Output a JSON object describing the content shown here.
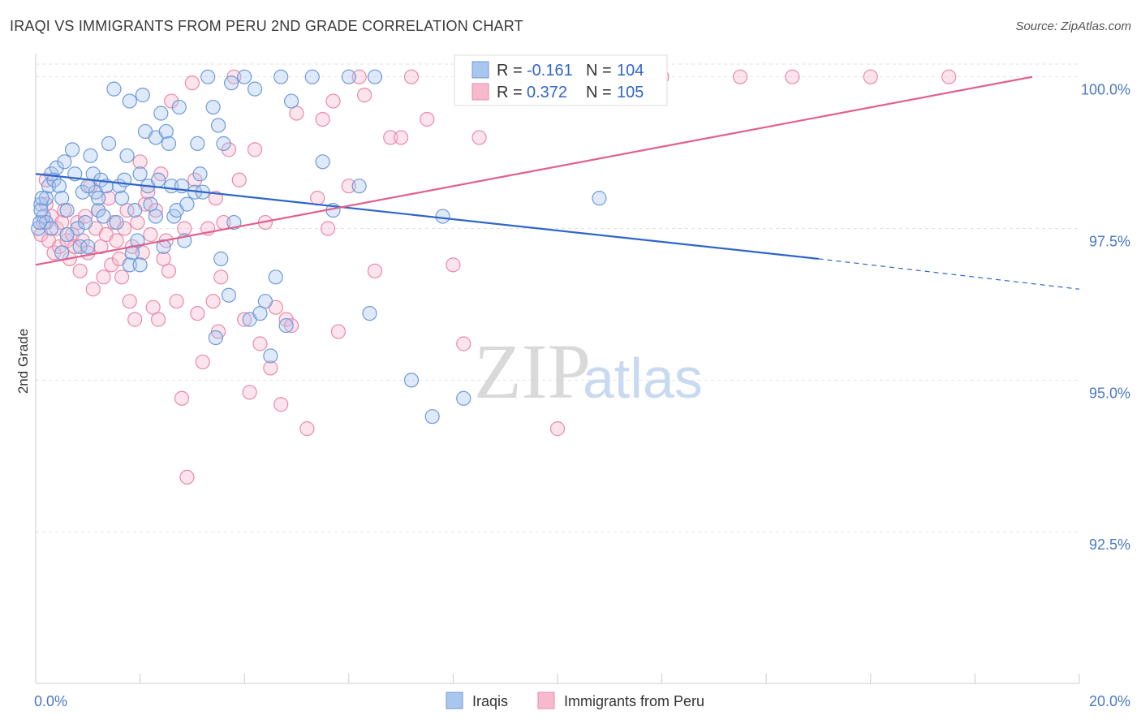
{
  "header": {
    "title": "IRAQI VS IMMIGRANTS FROM PERU 2ND GRADE CORRELATION CHART",
    "source": "Source: ZipAtlas.com"
  },
  "watermark": {
    "zip": "ZIP",
    "atlas": "atlas"
  },
  "legend": {
    "r_label": "R =",
    "n_label": "N =",
    "items": [
      {
        "r": "-0.161",
        "n": "104",
        "color": "#a9c6ef",
        "stroke": "#6f9ad8"
      },
      {
        "r": "0.372",
        "n": "105",
        "color": "#f7b9cc",
        "stroke": "#e98aa8"
      }
    ]
  },
  "bottom_legend": {
    "items": [
      {
        "label": "Iraqis",
        "color": "#a9c6ef",
        "stroke": "#6f9ad8"
      },
      {
        "label": "Immigrants from Peru",
        "color": "#f7b9cc",
        "stroke": "#e98aa8"
      }
    ]
  },
  "chart_data": {
    "type": "scatter",
    "title": "IRAQI VS IMMIGRANTS FROM PERU 2ND GRADE CORRELATION CHART",
    "xlabel": "",
    "ylabel": "2nd Grade",
    "xlim": [
      0,
      20
    ],
    "ylim": [
      90.0,
      100.25
    ],
    "x_ticks_labels": [
      "0.0%",
      "20.0%"
    ],
    "y_ticks": [
      92.5,
      95.0,
      97.5,
      100.0
    ],
    "y_ticks_labels": [
      "92.5%",
      "95.0%",
      "97.5%",
      "100.0%"
    ],
    "grid": true,
    "legend_position": "top-center",
    "series": [
      {
        "name": "Iraqis",
        "color": "#6f9ad8",
        "r": -0.161,
        "n": 104,
        "trend": {
          "x0": 0,
          "y0": 98.4,
          "x1": 15.0,
          "y1": 97.0,
          "dash_to_x": 20.0,
          "dash_to_y": 96.5
        },
        "points": [
          [
            0.1,
            97.9
          ],
          [
            0.15,
            97.7
          ],
          [
            0.2,
            98.0
          ],
          [
            0.2,
            97.6
          ],
          [
            0.25,
            98.2
          ],
          [
            0.3,
            98.4
          ],
          [
            0.35,
            98.3
          ],
          [
            0.4,
            98.5
          ],
          [
            0.45,
            98.2
          ],
          [
            0.5,
            98.0
          ],
          [
            0.55,
            98.6
          ],
          [
            0.6,
            97.8
          ],
          [
            0.7,
            98.8
          ],
          [
            0.75,
            98.4
          ],
          [
            0.8,
            97.5
          ],
          [
            0.85,
            97.2
          ],
          [
            0.9,
            98.1
          ],
          [
            0.95,
            97.6
          ],
          [
            1.0,
            97.2
          ],
          [
            1.05,
            98.7
          ],
          [
            1.1,
            98.4
          ],
          [
            1.15,
            98.1
          ],
          [
            1.2,
            97.8
          ],
          [
            1.25,
            98.3
          ],
          [
            1.3,
            97.7
          ],
          [
            1.35,
            98.2
          ],
          [
            1.4,
            98.9
          ],
          [
            1.5,
            99.8
          ],
          [
            1.55,
            97.6
          ],
          [
            1.6,
            98.2
          ],
          [
            1.65,
            98.0
          ],
          [
            1.7,
            98.3
          ],
          [
            1.75,
            98.7
          ],
          [
            1.8,
            99.6
          ],
          [
            1.85,
            97.1
          ],
          [
            1.9,
            97.8
          ],
          [
            1.95,
            97.3
          ],
          [
            2.0,
            98.4
          ],
          [
            2.05,
            99.7
          ],
          [
            2.1,
            99.1
          ],
          [
            2.15,
            98.2
          ],
          [
            2.2,
            97.9
          ],
          [
            2.3,
            99.0
          ],
          [
            2.35,
            98.3
          ],
          [
            2.4,
            99.4
          ],
          [
            2.45,
            97.2
          ],
          [
            2.5,
            99.1
          ],
          [
            2.55,
            98.9
          ],
          [
            2.6,
            98.2
          ],
          [
            2.65,
            97.7
          ],
          [
            2.7,
            97.8
          ],
          [
            2.75,
            99.5
          ],
          [
            2.8,
            98.2
          ],
          [
            2.85,
            97.3
          ],
          [
            2.9,
            97.9
          ],
          [
            3.05,
            98.1
          ],
          [
            3.1,
            98.9
          ],
          [
            3.15,
            98.4
          ],
          [
            3.2,
            98.1
          ],
          [
            3.3,
            100.0
          ],
          [
            3.4,
            99.5
          ],
          [
            3.45,
            95.7
          ],
          [
            3.5,
            99.2
          ],
          [
            3.55,
            97.0
          ],
          [
            3.6,
            98.9
          ],
          [
            3.7,
            96.4
          ],
          [
            3.75,
            99.9
          ],
          [
            3.8,
            97.6
          ],
          [
            4.0,
            100.0
          ],
          [
            4.1,
            96.0
          ],
          [
            4.2,
            99.8
          ],
          [
            4.3,
            96.1
          ],
          [
            4.4,
            96.3
          ],
          [
            4.5,
            95.4
          ],
          [
            4.6,
            96.7
          ],
          [
            4.7,
            100.0
          ],
          [
            4.8,
            95.9
          ],
          [
            4.9,
            99.6
          ],
          [
            5.3,
            100.0
          ],
          [
            5.5,
            98.6
          ],
          [
            5.7,
            97.8
          ],
          [
            6.0,
            100.0
          ],
          [
            6.2,
            98.2
          ],
          [
            6.4,
            96.1
          ],
          [
            6.5,
            100.0
          ],
          [
            7.2,
            95.0
          ],
          [
            7.6,
            94.4
          ],
          [
            7.8,
            97.7
          ],
          [
            8.2,
            94.7
          ],
          [
            9.0,
            99.9
          ],
          [
            9.5,
            99.7
          ],
          [
            10.8,
            98.0
          ],
          [
            0.05,
            97.5
          ],
          [
            0.08,
            97.6
          ],
          [
            0.1,
            97.8
          ],
          [
            0.12,
            98.0
          ],
          [
            0.3,
            97.5
          ],
          [
            0.5,
            97.1
          ],
          [
            0.6,
            97.4
          ],
          [
            1.0,
            98.2
          ],
          [
            1.2,
            98.0
          ],
          [
            1.8,
            96.9
          ],
          [
            2.0,
            96.9
          ],
          [
            2.3,
            97.7
          ]
        ]
      },
      {
        "name": "Immigrants from Peru",
        "color": "#e98aa8",
        "r": 0.372,
        "n": 105,
        "trend": {
          "x0": 0,
          "y0": 96.9,
          "x1": 19.1,
          "y1": 100.0
        },
        "points": [
          [
            0.1,
            97.4
          ],
          [
            0.15,
            97.6
          ],
          [
            0.2,
            97.9
          ],
          [
            0.25,
            97.3
          ],
          [
            0.3,
            97.7
          ],
          [
            0.35,
            97.1
          ],
          [
            0.4,
            97.5
          ],
          [
            0.45,
            97.2
          ],
          [
            0.5,
            97.6
          ],
          [
            0.55,
            97.8
          ],
          [
            0.6,
            97.3
          ],
          [
            0.65,
            97.0
          ],
          [
            0.7,
            97.4
          ],
          [
            0.75,
            97.2
          ],
          [
            0.8,
            97.6
          ],
          [
            0.85,
            96.8
          ],
          [
            0.9,
            97.3
          ],
          [
            0.95,
            97.7
          ],
          [
            1.0,
            97.1
          ],
          [
            1.05,
            98.2
          ],
          [
            1.1,
            96.5
          ],
          [
            1.15,
            97.5
          ],
          [
            1.2,
            97.8
          ],
          [
            1.25,
            97.2
          ],
          [
            1.3,
            96.7
          ],
          [
            1.35,
            97.4
          ],
          [
            1.4,
            98.0
          ],
          [
            1.45,
            96.9
          ],
          [
            1.5,
            97.6
          ],
          [
            1.55,
            97.3
          ],
          [
            1.6,
            97.0
          ],
          [
            1.65,
            96.7
          ],
          [
            1.7,
            97.5
          ],
          [
            1.75,
            97.8
          ],
          [
            1.8,
            96.3
          ],
          [
            1.85,
            97.2
          ],
          [
            1.9,
            96.0
          ],
          [
            1.95,
            97.6
          ],
          [
            2.0,
            98.6
          ],
          [
            2.05,
            97.1
          ],
          [
            2.1,
            97.9
          ],
          [
            2.15,
            98.1
          ],
          [
            2.2,
            97.4
          ],
          [
            2.25,
            96.2
          ],
          [
            2.3,
            97.8
          ],
          [
            2.35,
            96.0
          ],
          [
            2.4,
            98.4
          ],
          [
            2.45,
            97.0
          ],
          [
            2.5,
            97.3
          ],
          [
            2.55,
            96.8
          ],
          [
            2.6,
            99.6
          ],
          [
            2.7,
            96.3
          ],
          [
            2.8,
            94.7
          ],
          [
            2.85,
            97.5
          ],
          [
            2.9,
            93.4
          ],
          [
            3.0,
            99.9
          ],
          [
            3.05,
            98.3
          ],
          [
            3.1,
            96.1
          ],
          [
            3.2,
            95.3
          ],
          [
            3.3,
            97.5
          ],
          [
            3.4,
            96.3
          ],
          [
            3.45,
            98.0
          ],
          [
            3.5,
            95.8
          ],
          [
            3.55,
            96.7
          ],
          [
            3.6,
            97.6
          ],
          [
            3.7,
            98.8
          ],
          [
            3.8,
            100.0
          ],
          [
            3.9,
            98.3
          ],
          [
            4.0,
            96.0
          ],
          [
            4.1,
            94.8
          ],
          [
            4.2,
            98.8
          ],
          [
            4.3,
            95.6
          ],
          [
            4.4,
            97.6
          ],
          [
            4.5,
            95.2
          ],
          [
            4.6,
            96.2
          ],
          [
            4.7,
            94.6
          ],
          [
            4.8,
            96.0
          ],
          [
            4.9,
            95.9
          ],
          [
            5.0,
            99.4
          ],
          [
            5.2,
            94.2
          ],
          [
            5.4,
            98.0
          ],
          [
            5.5,
            99.3
          ],
          [
            5.6,
            97.5
          ],
          [
            5.7,
            99.6
          ],
          [
            5.8,
            95.8
          ],
          [
            6.0,
            98.2
          ],
          [
            6.2,
            100.0
          ],
          [
            6.3,
            99.7
          ],
          [
            6.5,
            96.8
          ],
          [
            6.8,
            99.0
          ],
          [
            7.0,
            99.0
          ],
          [
            7.2,
            100.0
          ],
          [
            7.5,
            99.3
          ],
          [
            8.0,
            96.9
          ],
          [
            8.2,
            95.6
          ],
          [
            8.5,
            99.0
          ],
          [
            9.0,
            100.0
          ],
          [
            10.0,
            94.2
          ],
          [
            11.0,
            100.0
          ],
          [
            12.0,
            100.0
          ],
          [
            13.5,
            100.0
          ],
          [
            14.5,
            100.0
          ],
          [
            16.0,
            100.0
          ],
          [
            17.5,
            100.0
          ],
          [
            0.2,
            98.3
          ]
        ]
      }
    ]
  }
}
